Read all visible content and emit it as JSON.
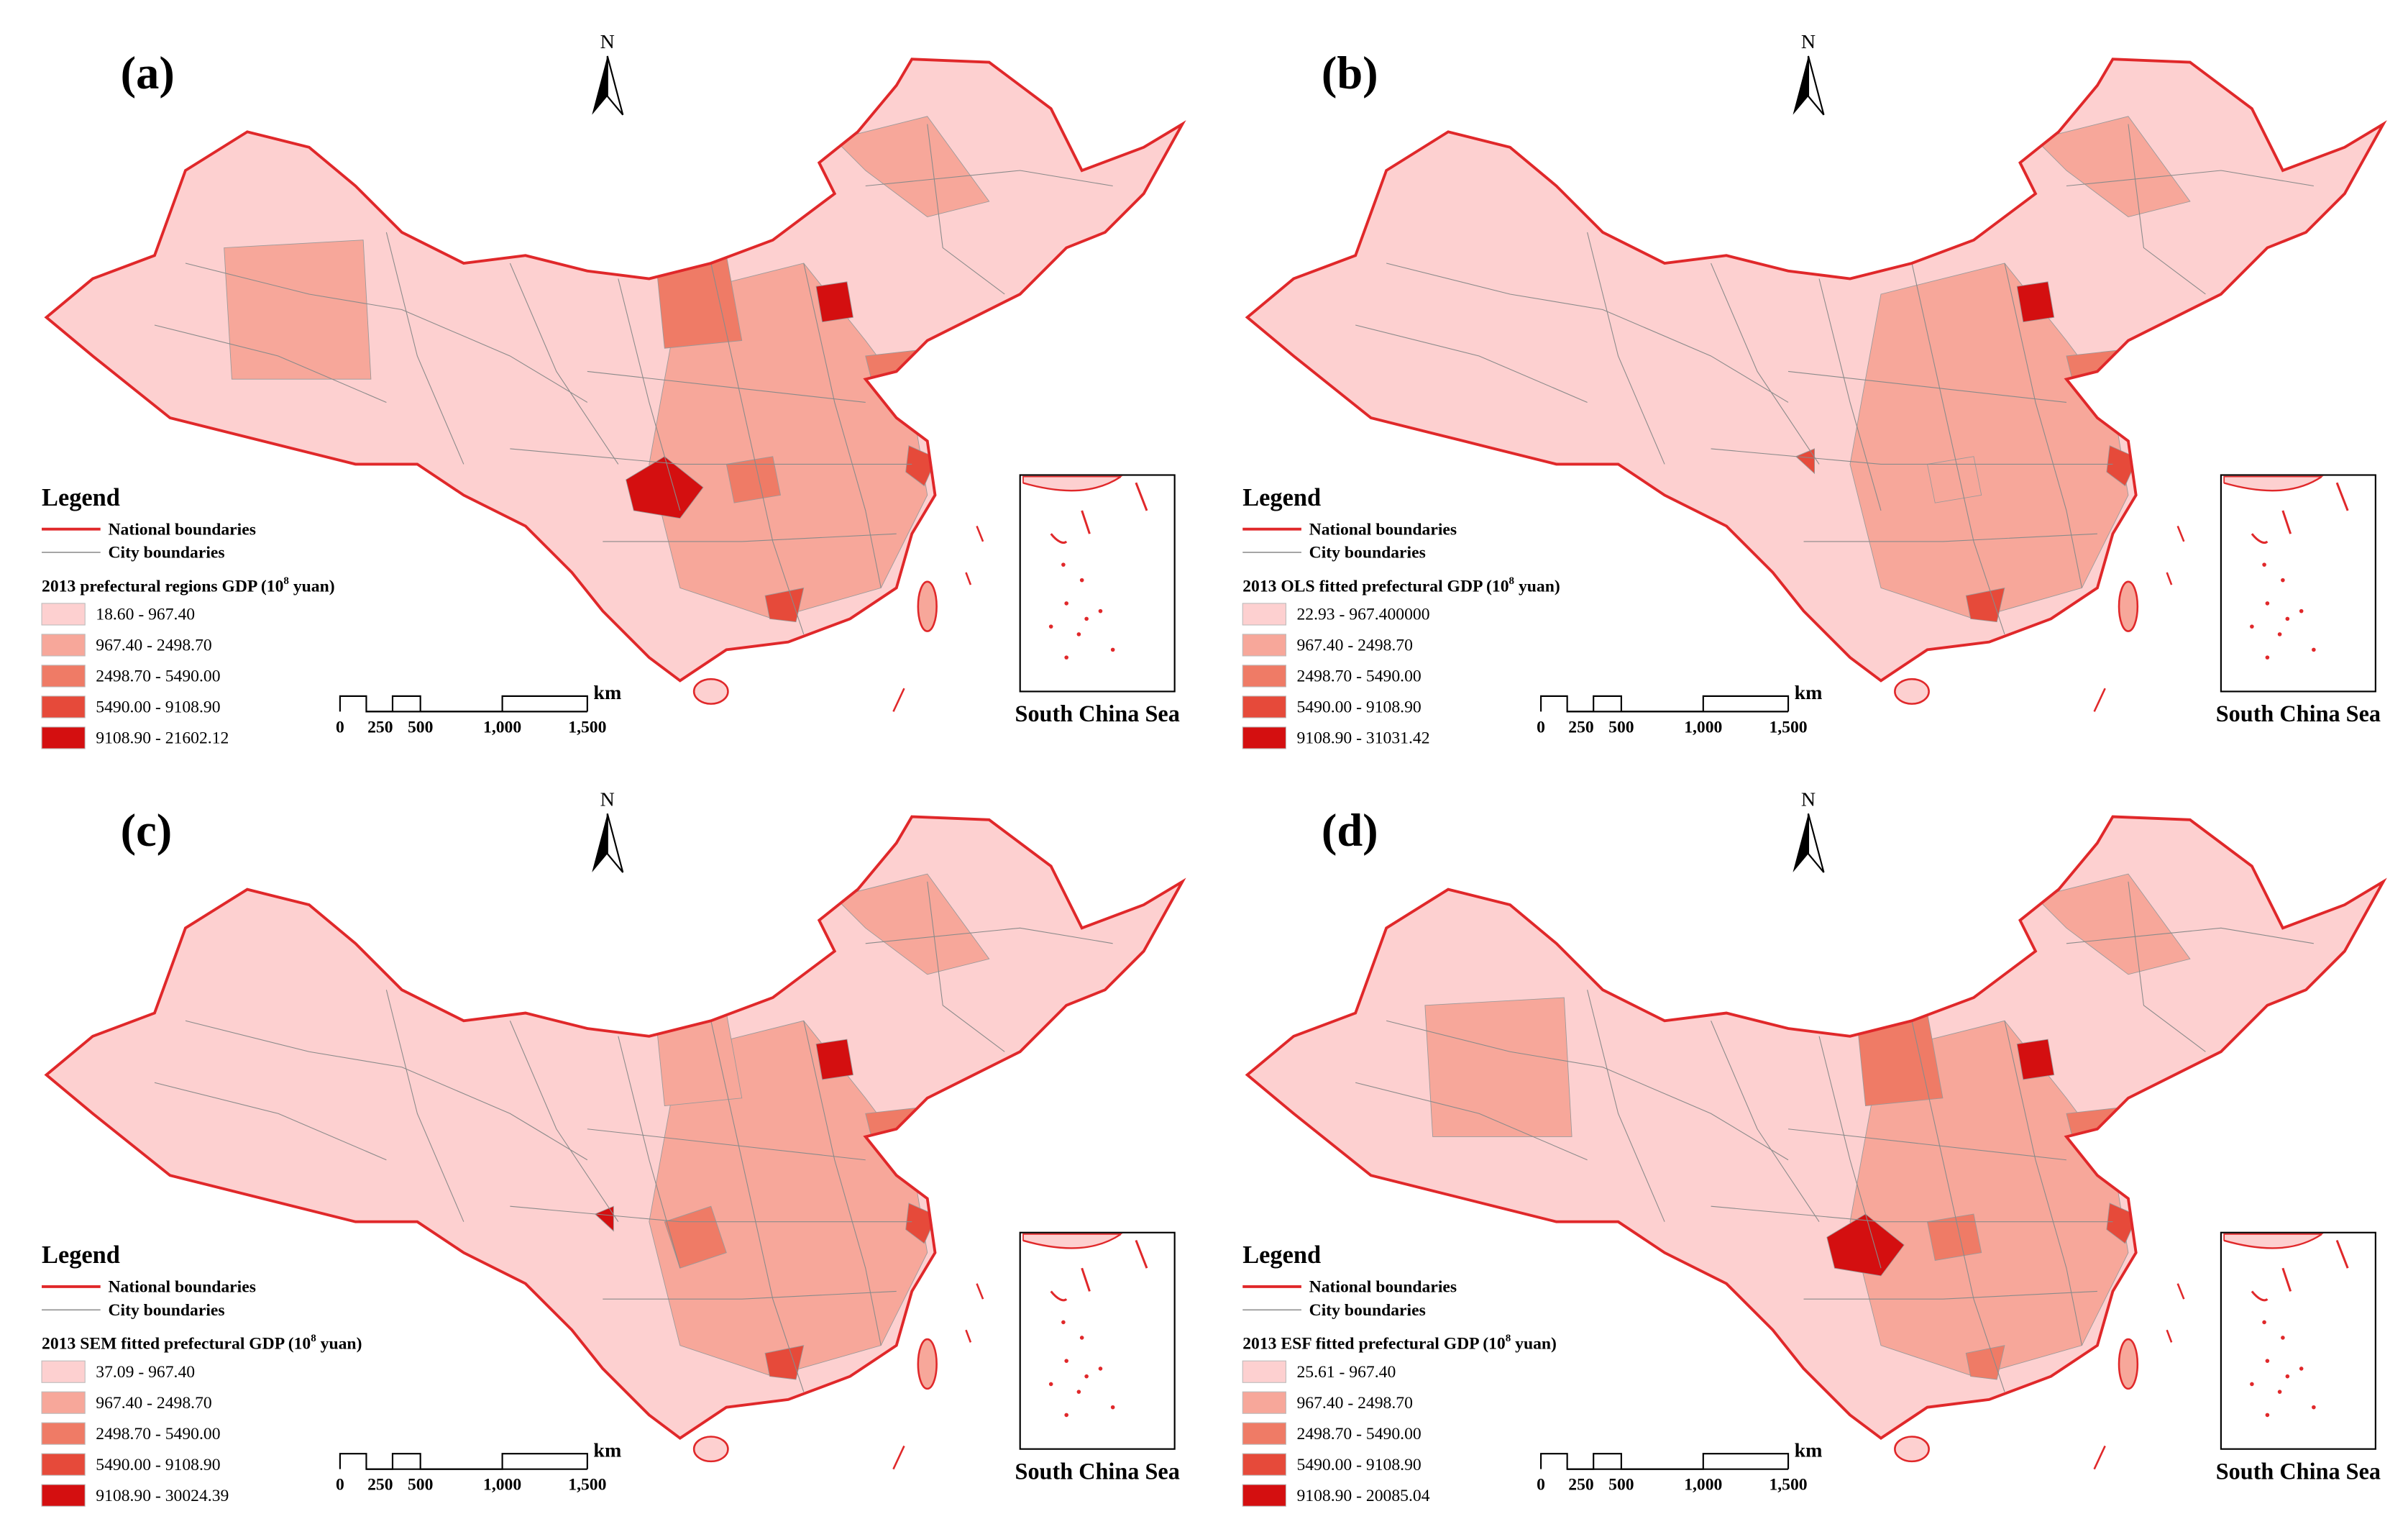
{
  "north": "N",
  "inset_label": "South China Sea",
  "legend": {
    "heading": "Legend",
    "national": "National boundaries",
    "city": "City boundaries"
  },
  "scale_bar": {
    "labels": [
      "0",
      "250",
      "500",
      "1,000",
      "1,500"
    ],
    "unit": "km"
  },
  "panels": [
    {
      "label": "(a)",
      "title": {
        "before": "2013 prefectural regions GDP (10",
        "superscript": "8",
        "after": " yuan)"
      },
      "classes": [
        "18.60 - 967.40",
        "967.40 - 2498.70",
        "2498.70 - 5490.00",
        "5490.00 - 9108.90",
        "9108.90 - 21602.12"
      ]
    },
    {
      "label": "(b)",
      "title": {
        "before": "2013 OLS fitted prefectural GDP (10",
        "superscript": "8",
        "after": " yuan)"
      },
      "classes": [
        "22.93 - 967.400000",
        "967.40 - 2498.70",
        "2498.70 - 5490.00",
        "5490.00 - 9108.90",
        "9108.90 - 31031.42"
      ]
    },
    {
      "label": "(c)",
      "title": {
        "before": "2013 SEM fitted prefectural GDP (10",
        "superscript": "8",
        "after": " yuan)"
      },
      "classes": [
        "37.09 - 967.40",
        "967.40 - 2498.70",
        "2498.70 - 5490.00",
        "5490.00 - 9108.90",
        "9108.90 - 30024.39"
      ]
    },
    {
      "label": "(d)",
      "title": {
        "before": "2013 ESF fitted prefectural GDP (10",
        "superscript": "8",
        "after": " yuan)"
      },
      "classes": [
        "25.61 - 967.40",
        "967.40 - 2498.70",
        "2498.70 - 5490.00",
        "5490.00 - 9108.90",
        "9108.90 - 20085.04"
      ]
    }
  ]
}
